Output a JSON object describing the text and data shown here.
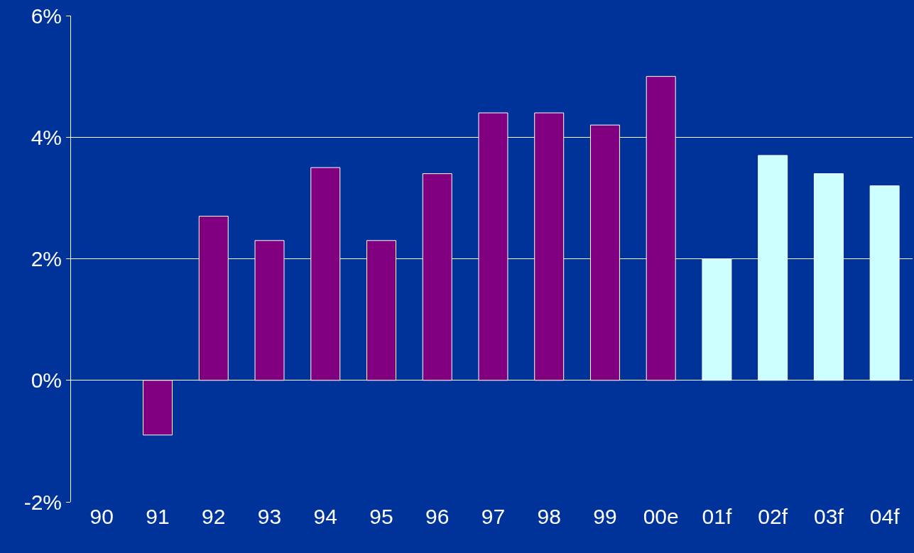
{
  "chart_data": {
    "type": "bar",
    "categories": [
      "90",
      "91",
      "92",
      "93",
      "94",
      "95",
      "96",
      "97",
      "98",
      "99",
      "00e",
      "01f",
      "02f",
      "03f",
      "04f"
    ],
    "values": [
      null,
      -0.9,
      2.7,
      2.3,
      3.5,
      2.3,
      3.4,
      4.4,
      4.4,
      4.2,
      5.0,
      2.0,
      3.7,
      3.4,
      3.2
    ],
    "colors": [
      "#800080",
      "#800080",
      "#800080",
      "#800080",
      "#800080",
      "#800080",
      "#800080",
      "#800080",
      "#800080",
      "#800080",
      "#800080",
      "#ccffff",
      "#ccffff",
      "#ccffff",
      "#ccffff"
    ],
    "ylim": [
      -2,
      6
    ],
    "yticks": [
      {
        "value": -2,
        "label": "-2%"
      },
      {
        "value": 0,
        "label": "0%"
      },
      {
        "value": 2,
        "label": "2%"
      },
      {
        "value": 4,
        "label": "4%"
      },
      {
        "value": 6,
        "label": "6%"
      }
    ],
    "grid": "y"
  }
}
